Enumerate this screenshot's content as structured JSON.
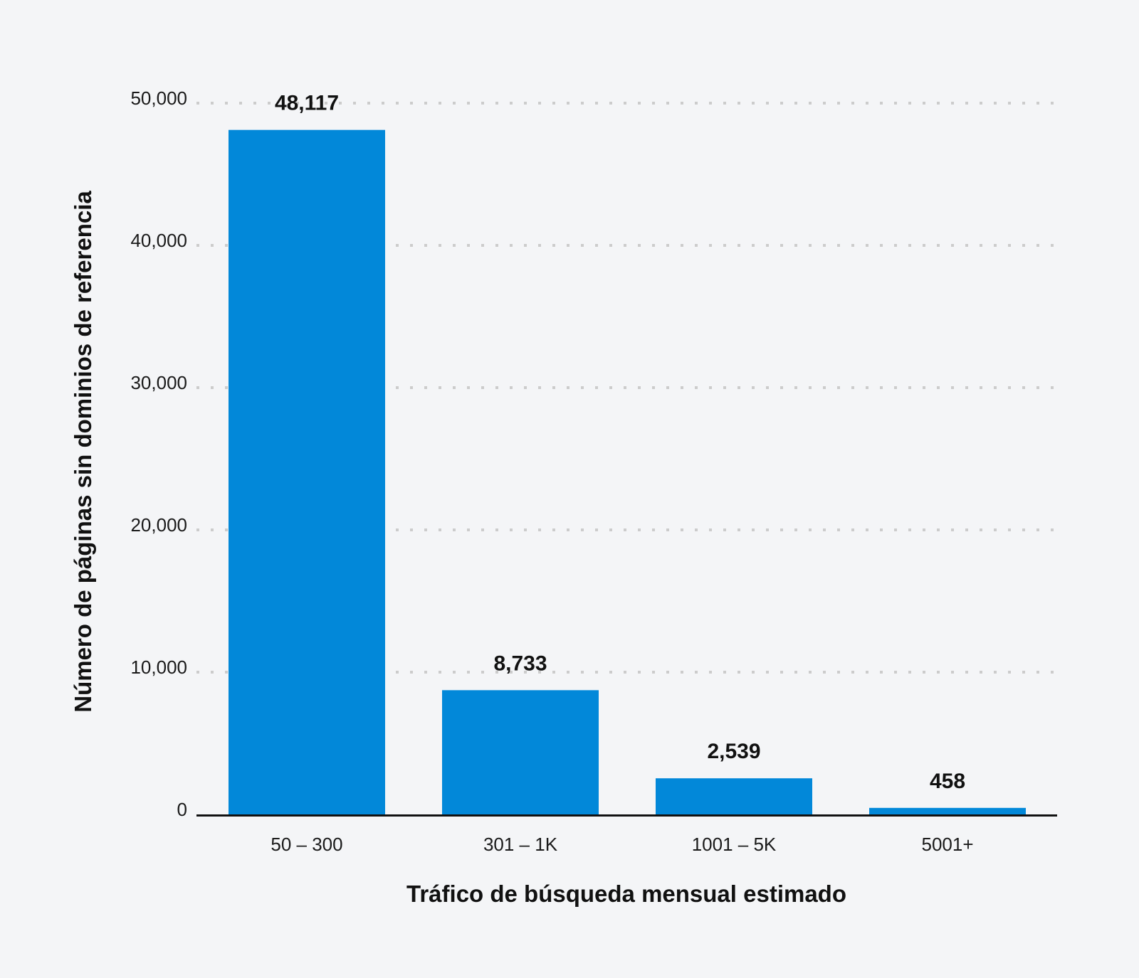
{
  "chart_data": {
    "type": "bar",
    "title": "",
    "xlabel": "Tráfico de búsqueda mensual estimado",
    "ylabel": "Número de páginas sin dominios de referencia",
    "categories": [
      "50 – 300",
      "301 – 1K",
      "1001 – 5K",
      "5001+"
    ],
    "values": [
      48117,
      8733,
      2539,
      458
    ],
    "value_labels": [
      "48,117",
      "8,733",
      "2,539",
      "458"
    ],
    "ylim": [
      0,
      50000
    ],
    "yticks": [
      0,
      10000,
      20000,
      30000,
      40000,
      50000
    ],
    "ytick_labels": [
      "0",
      "10,000",
      "20,000",
      "30,000",
      "40,000",
      "50,000"
    ],
    "grid": "horizontal dotted",
    "colors": {
      "bar": "#0288d9",
      "grid": "#cccccc",
      "axis": "#111111",
      "background": "#f4f5f7"
    }
  }
}
